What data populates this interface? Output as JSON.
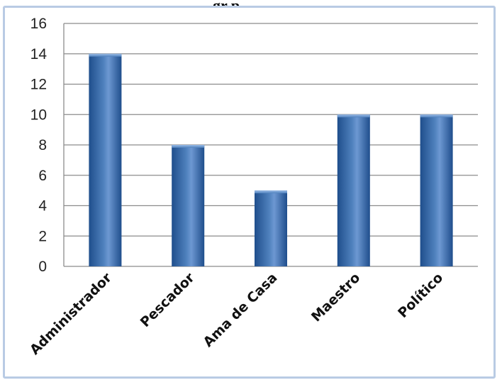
{
  "header_fragment": "gr        p",
  "chart_data": {
    "type": "bar",
    "categories": [
      "Administrador",
      "Pescador",
      "Ama de Casa",
      "Maestro",
      "Político"
    ],
    "values": [
      14,
      8,
      5,
      10,
      10
    ],
    "title": "",
    "xlabel": "",
    "ylabel": "",
    "ylim": [
      0,
      16
    ],
    "yticks": [
      0,
      2,
      4,
      6,
      8,
      10,
      12,
      14,
      16
    ],
    "grid": true,
    "legend": "none",
    "bar_color": "#4f81bd",
    "bar_dark": "#1f4e8c",
    "bar_light": "#7fa8dc"
  }
}
